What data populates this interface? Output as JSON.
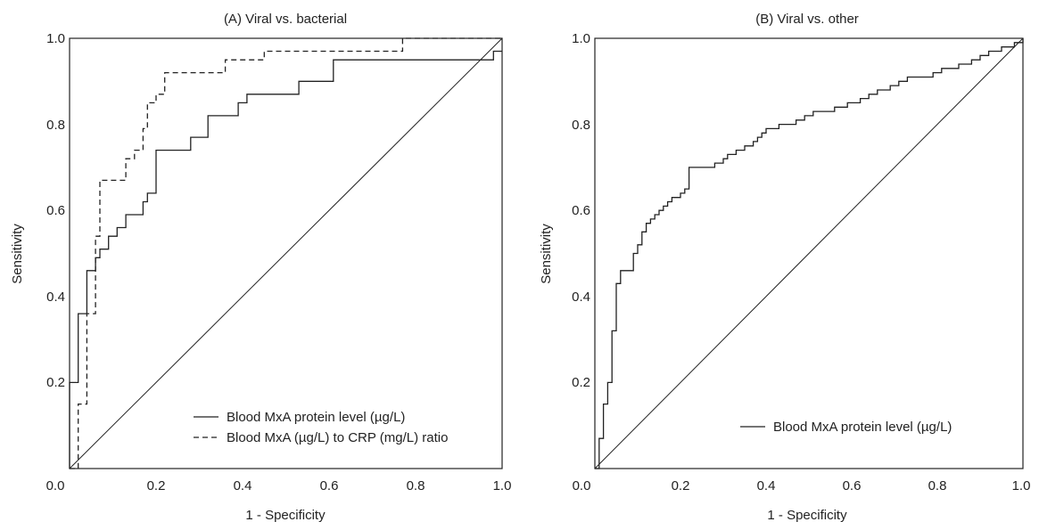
{
  "chart_data": [
    {
      "type": "line",
      "title": "(A) Viral vs. bacterial",
      "xlabel": "1 - Specificity",
      "ylabel": "Sensitivity",
      "xlim": [
        0,
        1
      ],
      "ylim": [
        0,
        1
      ],
      "x_ticks": [
        "0.0",
        "0.2",
        "0.4",
        "0.6",
        "0.8",
        "1.0"
      ],
      "y_ticks": [
        "0.2",
        "0.4",
        "0.6",
        "0.8",
        "1.0"
      ],
      "legend_position": "bottom-right",
      "series": [
        {
          "name": "Blood MxA protein level (µg/L)",
          "style": "solid",
          "x": [
            0,
            0,
            0.02,
            0.02,
            0.04,
            0.04,
            0.04,
            0.04,
            0.04,
            0.04,
            0.04,
            0.04,
            0.04,
            0.04,
            0.04,
            0.04,
            0.04,
            0.04,
            0.06,
            0.06,
            0.06,
            0.06,
            0.06,
            0.06,
            0.06,
            0.06,
            0.07,
            0.07,
            0.07,
            0.07,
            0.07,
            0.07,
            0.09,
            0.09,
            0.09,
            0.09,
            0.09,
            0.09,
            0.09,
            0.09,
            0.09,
            0.11,
            0.11,
            0.11,
            0.13,
            0.13,
            0.15,
            0.15,
            0.15,
            0.17,
            0.17,
            0.17,
            0.18,
            0.18,
            0.18,
            0.2,
            0.2,
            0.2,
            0.22,
            0.22,
            0.24,
            0.26,
            0.28,
            0.28,
            0.3,
            0.32,
            0.32,
            0.32,
            0.34,
            0.36,
            0.37,
            0.39,
            0.39,
            0.41,
            0.41,
            0.43,
            0.45,
            0.47,
            0.49,
            0.51,
            0.53,
            0.55,
            0.57,
            0.59,
            0.61,
            0.61,
            0.63,
            0.65,
            0.67,
            0.69,
            0.71,
            0.73,
            0.75,
            0.77,
            0.79,
            0.8,
            0.82,
            0.84,
            0.86,
            0.88,
            0.9,
            0.92,
            0.94,
            0.96,
            0.98,
            0.98,
            0.98,
            0.98,
            1
          ],
          "y": [
            0,
            0.2,
            0.2,
            0.36,
            0.36,
            0.36,
            0.36,
            0.36,
            0.36,
            0.36,
            0.46,
            0.46,
            0.46,
            0.46,
            0.46,
            0.46,
            0.46,
            0.46,
            0.46,
            0.49,
            0.49,
            0.49,
            0.49,
            0.49,
            0.49,
            0.49,
            0.49,
            0.51,
            0.51,
            0.51,
            0.51,
            0.51,
            0.51,
            0.51,
            0.51,
            0.54,
            0.54,
            0.54,
            0.54,
            0.54,
            0.54,
            0.54,
            0.56,
            0.56,
            0.56,
            0.59,
            0.59,
            0.59,
            0.59,
            0.59,
            0.62,
            0.62,
            0.62,
            0.64,
            0.64,
            0.64,
            0.74,
            0.74,
            0.74,
            0.74,
            0.74,
            0.74,
            0.74,
            0.77,
            0.77,
            0.77,
            0.82,
            0.82,
            0.82,
            0.82,
            0.82,
            0.82,
            0.85,
            0.85,
            0.87,
            0.87,
            0.87,
            0.87,
            0.87,
            0.87,
            0.9,
            0.9,
            0.9,
            0.9,
            0.9,
            0.95,
            0.95,
            0.95,
            0.95,
            0.95,
            0.95,
            0.95,
            0.95,
            0.95,
            0.95,
            0.95,
            0.95,
            0.95,
            0.95,
            0.95,
            0.95,
            0.95,
            0.95,
            0.95,
            0.95,
            0.97,
            0.97,
            0.97,
            0.97
          ]
        },
        {
          "name": "Blood MxA (µg/L) to CRP (mg/L) ratio",
          "style": "dashed",
          "x": [
            0,
            0.02,
            0.02,
            0.02,
            0.04,
            0.04,
            0.04,
            0.04,
            0.04,
            0.04,
            0.04,
            0.06,
            0.06,
            0.06,
            0.06,
            0.06,
            0.06,
            0.06,
            0.07,
            0.07,
            0.07,
            0.07,
            0.07,
            0.07,
            0.07,
            0.07,
            0.07,
            0.07,
            0.09,
            0.09,
            0.09,
            0.11,
            0.11,
            0.11,
            0.13,
            0.13,
            0.13,
            0.13,
            0.15,
            0.15,
            0.15,
            0.17,
            0.17,
            0.17,
            0.17,
            0.18,
            0.18,
            0.2,
            0.2,
            0.2,
            0.22,
            0.22,
            0.24,
            0.26,
            0.28,
            0.3,
            0.32,
            0.34,
            0.36,
            0.36,
            0.37,
            0.39,
            0.41,
            0.43,
            0.45,
            0.45,
            0.47,
            0.49,
            0.51,
            0.53,
            0.55,
            0.57,
            0.59,
            0.61,
            0.63,
            0.65,
            0.67,
            0.69,
            0.71,
            0.73,
            0.75,
            0.77,
            0.77,
            0.79,
            0.8,
            0.82,
            0.84,
            0.86,
            0.88,
            0.9,
            0.92,
            0.94,
            0.96,
            0.98,
            1
          ],
          "y": [
            0,
            0.15,
            0.15,
            0.15,
            0.26,
            0.26,
            0.26,
            0.36,
            0.36,
            0.36,
            0.36,
            0.38,
            0.38,
            0.38,
            0.54,
            0.54,
            0.54,
            0.54,
            0.67,
            0.67,
            0.67,
            0.67,
            0.67,
            0.67,
            0.67,
            0.67,
            0.67,
            0.67,
            0.67,
            0.67,
            0.67,
            0.67,
            0.67,
            0.67,
            0.72,
            0.72,
            0.72,
            0.72,
            0.74,
            0.74,
            0.74,
            0.79,
            0.79,
            0.79,
            0.79,
            0.85,
            0.85,
            0.87,
            0.87,
            0.87,
            0.92,
            0.92,
            0.92,
            0.92,
            0.92,
            0.92,
            0.92,
            0.92,
            0.95,
            0.95,
            0.95,
            0.95,
            0.95,
            0.95,
            0.97,
            0.97,
            0.97,
            0.97,
            0.97,
            0.97,
            0.97,
            0.97,
            0.97,
            0.97,
            0.97,
            0.97,
            0.97,
            0.97,
            0.97,
            0.97,
            0.97,
            1,
            1,
            1,
            1,
            1,
            1,
            1,
            1,
            1,
            1,
            1,
            1,
            1,
            1
          ]
        }
      ]
    },
    {
      "type": "line",
      "title": "(B) Viral vs. other",
      "xlabel": "1 - Specificity",
      "ylabel": "Sensitivity",
      "xlim": [
        0,
        1
      ],
      "ylim": [
        0,
        1
      ],
      "x_ticks": [
        "0.0",
        "0.2",
        "0.4",
        "0.6",
        "0.8",
        "1.0"
      ],
      "y_ticks": [
        "0.2",
        "0.4",
        "0.6",
        "0.8",
        "1.0"
      ],
      "legend_position": "bottom-right",
      "series": [
        {
          "name": "Blood MxA protein level (µg/L)",
          "style": "solid",
          "x": [
            0,
            0.01,
            0.01,
            0.02,
            0.02,
            0.03,
            0.03,
            0.04,
            0.04,
            0.05,
            0.05,
            0.05,
            0.06,
            0.06,
            0.07,
            0.07,
            0.08,
            0.09,
            0.09,
            0.1,
            0.1,
            0.11,
            0.11,
            0.12,
            0.12,
            0.13,
            0.13,
            0.14,
            0.15,
            0.16,
            0.17,
            0.18,
            0.19,
            0.2,
            0.21,
            0.22,
            0.22,
            0.23,
            0.24,
            0.25,
            0.26,
            0.27,
            0.28,
            0.29,
            0.3,
            0.31,
            0.32,
            0.33,
            0.34,
            0.35,
            0.36,
            0.37,
            0.38,
            0.39,
            0.4,
            0.41,
            0.42,
            0.43,
            0.44,
            0.45,
            0.46,
            0.47,
            0.48,
            0.49,
            0.5,
            0.51,
            0.52,
            0.53,
            0.54,
            0.55,
            0.56,
            0.57,
            0.58,
            0.59,
            0.6,
            0.61,
            0.62,
            0.63,
            0.64,
            0.65,
            0.66,
            0.67,
            0.68,
            0.69,
            0.7,
            0.71,
            0.72,
            0.73,
            0.74,
            0.75,
            0.76,
            0.77,
            0.78,
            0.79,
            0.8,
            0.81,
            0.82,
            0.83,
            0.84,
            0.85,
            0.86,
            0.87,
            0.88,
            0.89,
            0.9,
            0.91,
            0.92,
            0.93,
            0.94,
            0.95,
            0.96,
            0.97,
            0.98,
            0.99,
            1
          ],
          "y": [
            0,
            0.01,
            0.07,
            0.07,
            0.15,
            0.15,
            0.2,
            0.2,
            0.32,
            0.32,
            0.32,
            0.43,
            0.43,
            0.46,
            0.46,
            0.46,
            0.46,
            0.48,
            0.5,
            0.5,
            0.52,
            0.52,
            0.55,
            0.55,
            0.57,
            0.57,
            0.58,
            0.59,
            0.6,
            0.61,
            0.62,
            0.63,
            0.63,
            0.64,
            0.65,
            0.66,
            0.7,
            0.7,
            0.7,
            0.7,
            0.7,
            0.7,
            0.71,
            0.71,
            0.72,
            0.73,
            0.73,
            0.74,
            0.74,
            0.75,
            0.75,
            0.76,
            0.77,
            0.78,
            0.79,
            0.79,
            0.79,
            0.8,
            0.8,
            0.8,
            0.8,
            0.81,
            0.81,
            0.82,
            0.82,
            0.83,
            0.83,
            0.83,
            0.83,
            0.83,
            0.84,
            0.84,
            0.84,
            0.85,
            0.85,
            0.85,
            0.86,
            0.86,
            0.87,
            0.87,
            0.88,
            0.88,
            0.88,
            0.89,
            0.89,
            0.9,
            0.9,
            0.91,
            0.91,
            0.91,
            0.91,
            0.91,
            0.91,
            0.92,
            0.92,
            0.93,
            0.93,
            0.93,
            0.93,
            0.94,
            0.94,
            0.94,
            0.95,
            0.95,
            0.96,
            0.96,
            0.97,
            0.97,
            0.97,
            0.98,
            0.98,
            0.98,
            0.99,
            0.99,
            1
          ]
        }
      ]
    }
  ]
}
